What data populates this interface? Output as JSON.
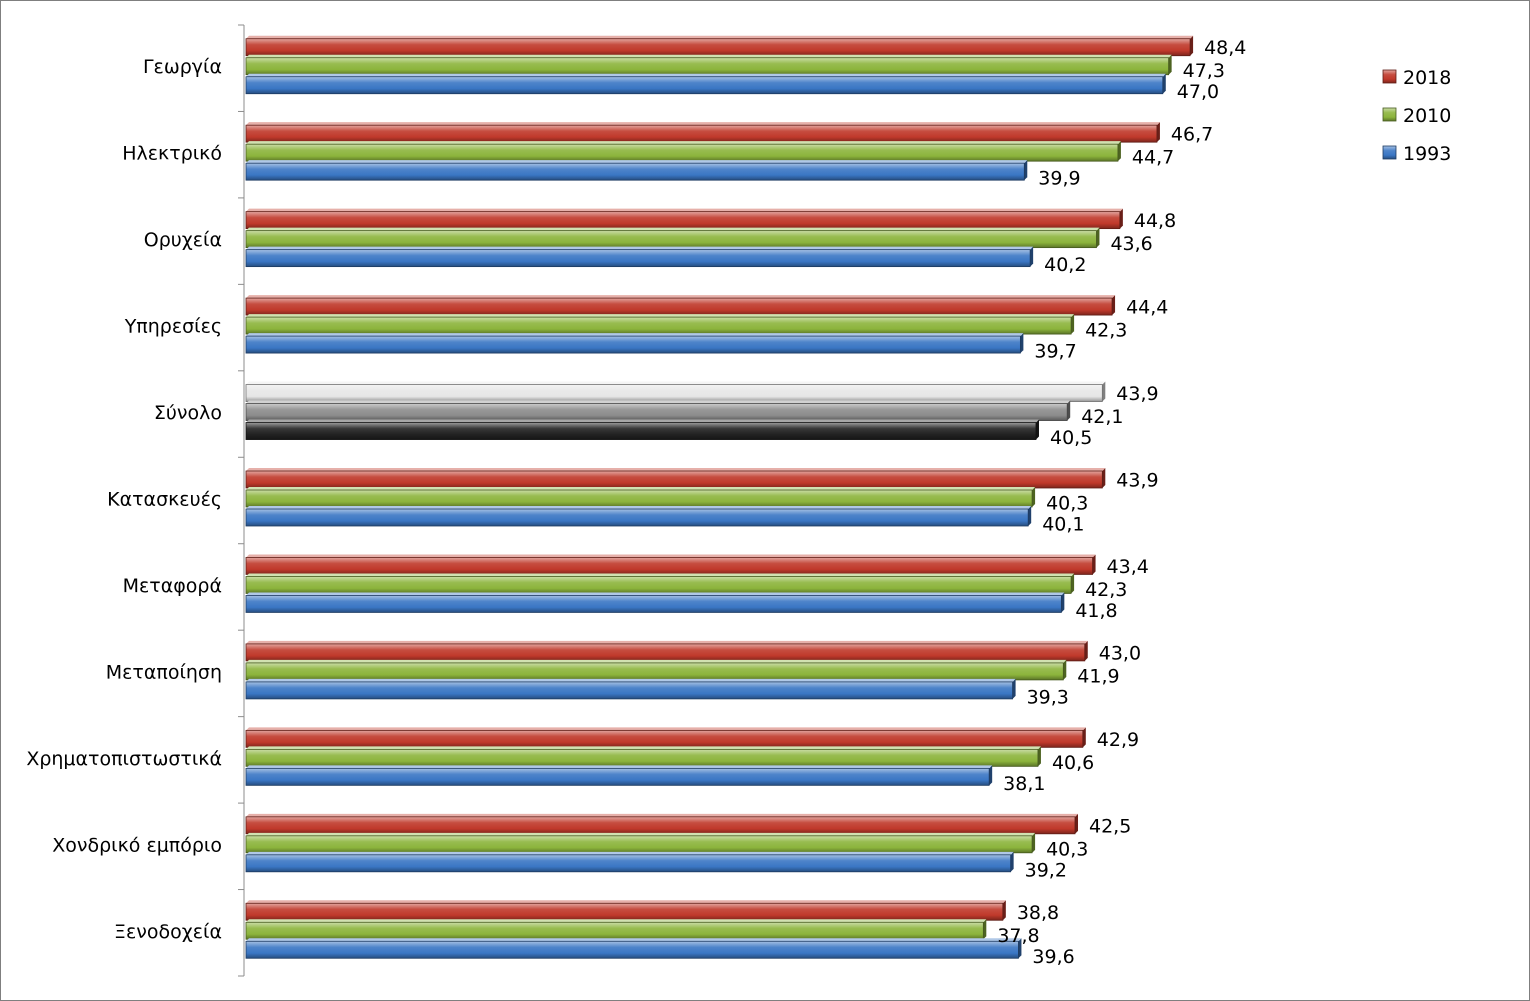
{
  "chart_data": {
    "type": "bar",
    "orientation": "horizontal",
    "style": "3d-cylinder",
    "title": "",
    "xlabel": "",
    "ylabel": "",
    "xlim": [
      0,
      50.6
    ],
    "grid": false,
    "legend_position": "right",
    "categories": [
      "Γεωργία",
      "Ηλεκτρικό",
      "Ορυχεία",
      "Υπηρεσίες",
      "Σύνολο",
      "Κατασκευές",
      "Μεταφορά",
      "Μεταποίηση",
      "Χρηματοπιστωστικά",
      "Χονδρικό εμπόριο",
      "Ξενοδοχεία"
    ],
    "series": [
      {
        "name": "2018",
        "color": "#c0392b",
        "values": [
          48.4,
          46.7,
          44.8,
          44.4,
          43.9,
          43.9,
          43.4,
          43.0,
          42.9,
          42.5,
          38.8
        ],
        "labels": [
          "48,4",
          "46,7",
          "44,8",
          "44,4",
          "43,9",
          "43,9",
          "43,4",
          "43,0",
          "42,9",
          "42,5",
          "38,8"
        ]
      },
      {
        "name": "2010",
        "color": "#8cb43c",
        "values": [
          47.3,
          44.7,
          43.6,
          42.3,
          42.1,
          40.3,
          42.3,
          41.9,
          40.6,
          40.3,
          37.8
        ],
        "labels": [
          "47,3",
          "44,7",
          "43,6",
          "42,3",
          "42,1",
          "40,3",
          "42,3",
          "41,9",
          "40,6",
          "40,3",
          "37,8"
        ]
      },
      {
        "name": "1993",
        "color": "#3a76c4",
        "values": [
          47.0,
          39.9,
          40.2,
          39.7,
          40.5,
          40.1,
          41.8,
          39.3,
          38.1,
          39.2,
          39.6
        ],
        "labels": [
          "47,0",
          "39,9",
          "40,2",
          "39,7",
          "40,5",
          "40,1",
          "41,8",
          "39,3",
          "38,1",
          "39,2",
          "39,6"
        ]
      }
    ],
    "highlight": {
      "category": "Σύνολο",
      "colors": [
        "#e6e6e6",
        "#8c8c8c",
        "#222222"
      ]
    }
  }
}
